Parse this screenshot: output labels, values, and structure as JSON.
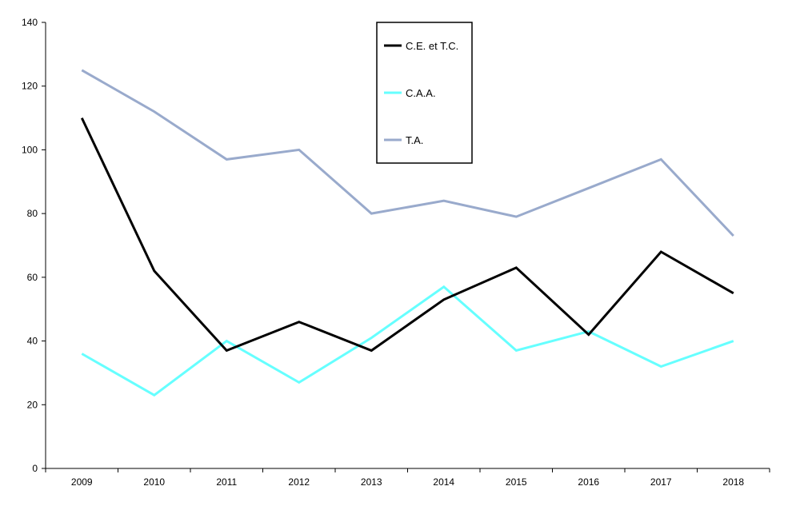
{
  "chart_data": {
    "type": "line",
    "title": "",
    "xlabel": "",
    "ylabel": "",
    "categories": [
      "2009",
      "2010",
      "2011",
      "2012",
      "2013",
      "2014",
      "2015",
      "2016",
      "2017",
      "2018"
    ],
    "ylim": [
      0,
      140
    ],
    "yticks": [
      0,
      20,
      40,
      60,
      80,
      100,
      120,
      140
    ],
    "grid": false,
    "legend_position": "top-center",
    "series": [
      {
        "name": "C.E. et T.C.",
        "color": "#000000",
        "values": [
          110,
          62,
          37,
          46,
          37,
          53,
          63,
          42,
          68,
          55
        ]
      },
      {
        "name": "C.A.A.",
        "color": "#66ffff",
        "values": [
          36,
          23,
          40,
          27,
          41,
          57,
          37,
          43,
          32,
          40
        ]
      },
      {
        "name": "T.A.",
        "color": "#99aacc",
        "values": [
          125,
          112,
          97,
          100,
          80,
          84,
          79,
          88,
          97,
          73
        ]
      }
    ]
  }
}
